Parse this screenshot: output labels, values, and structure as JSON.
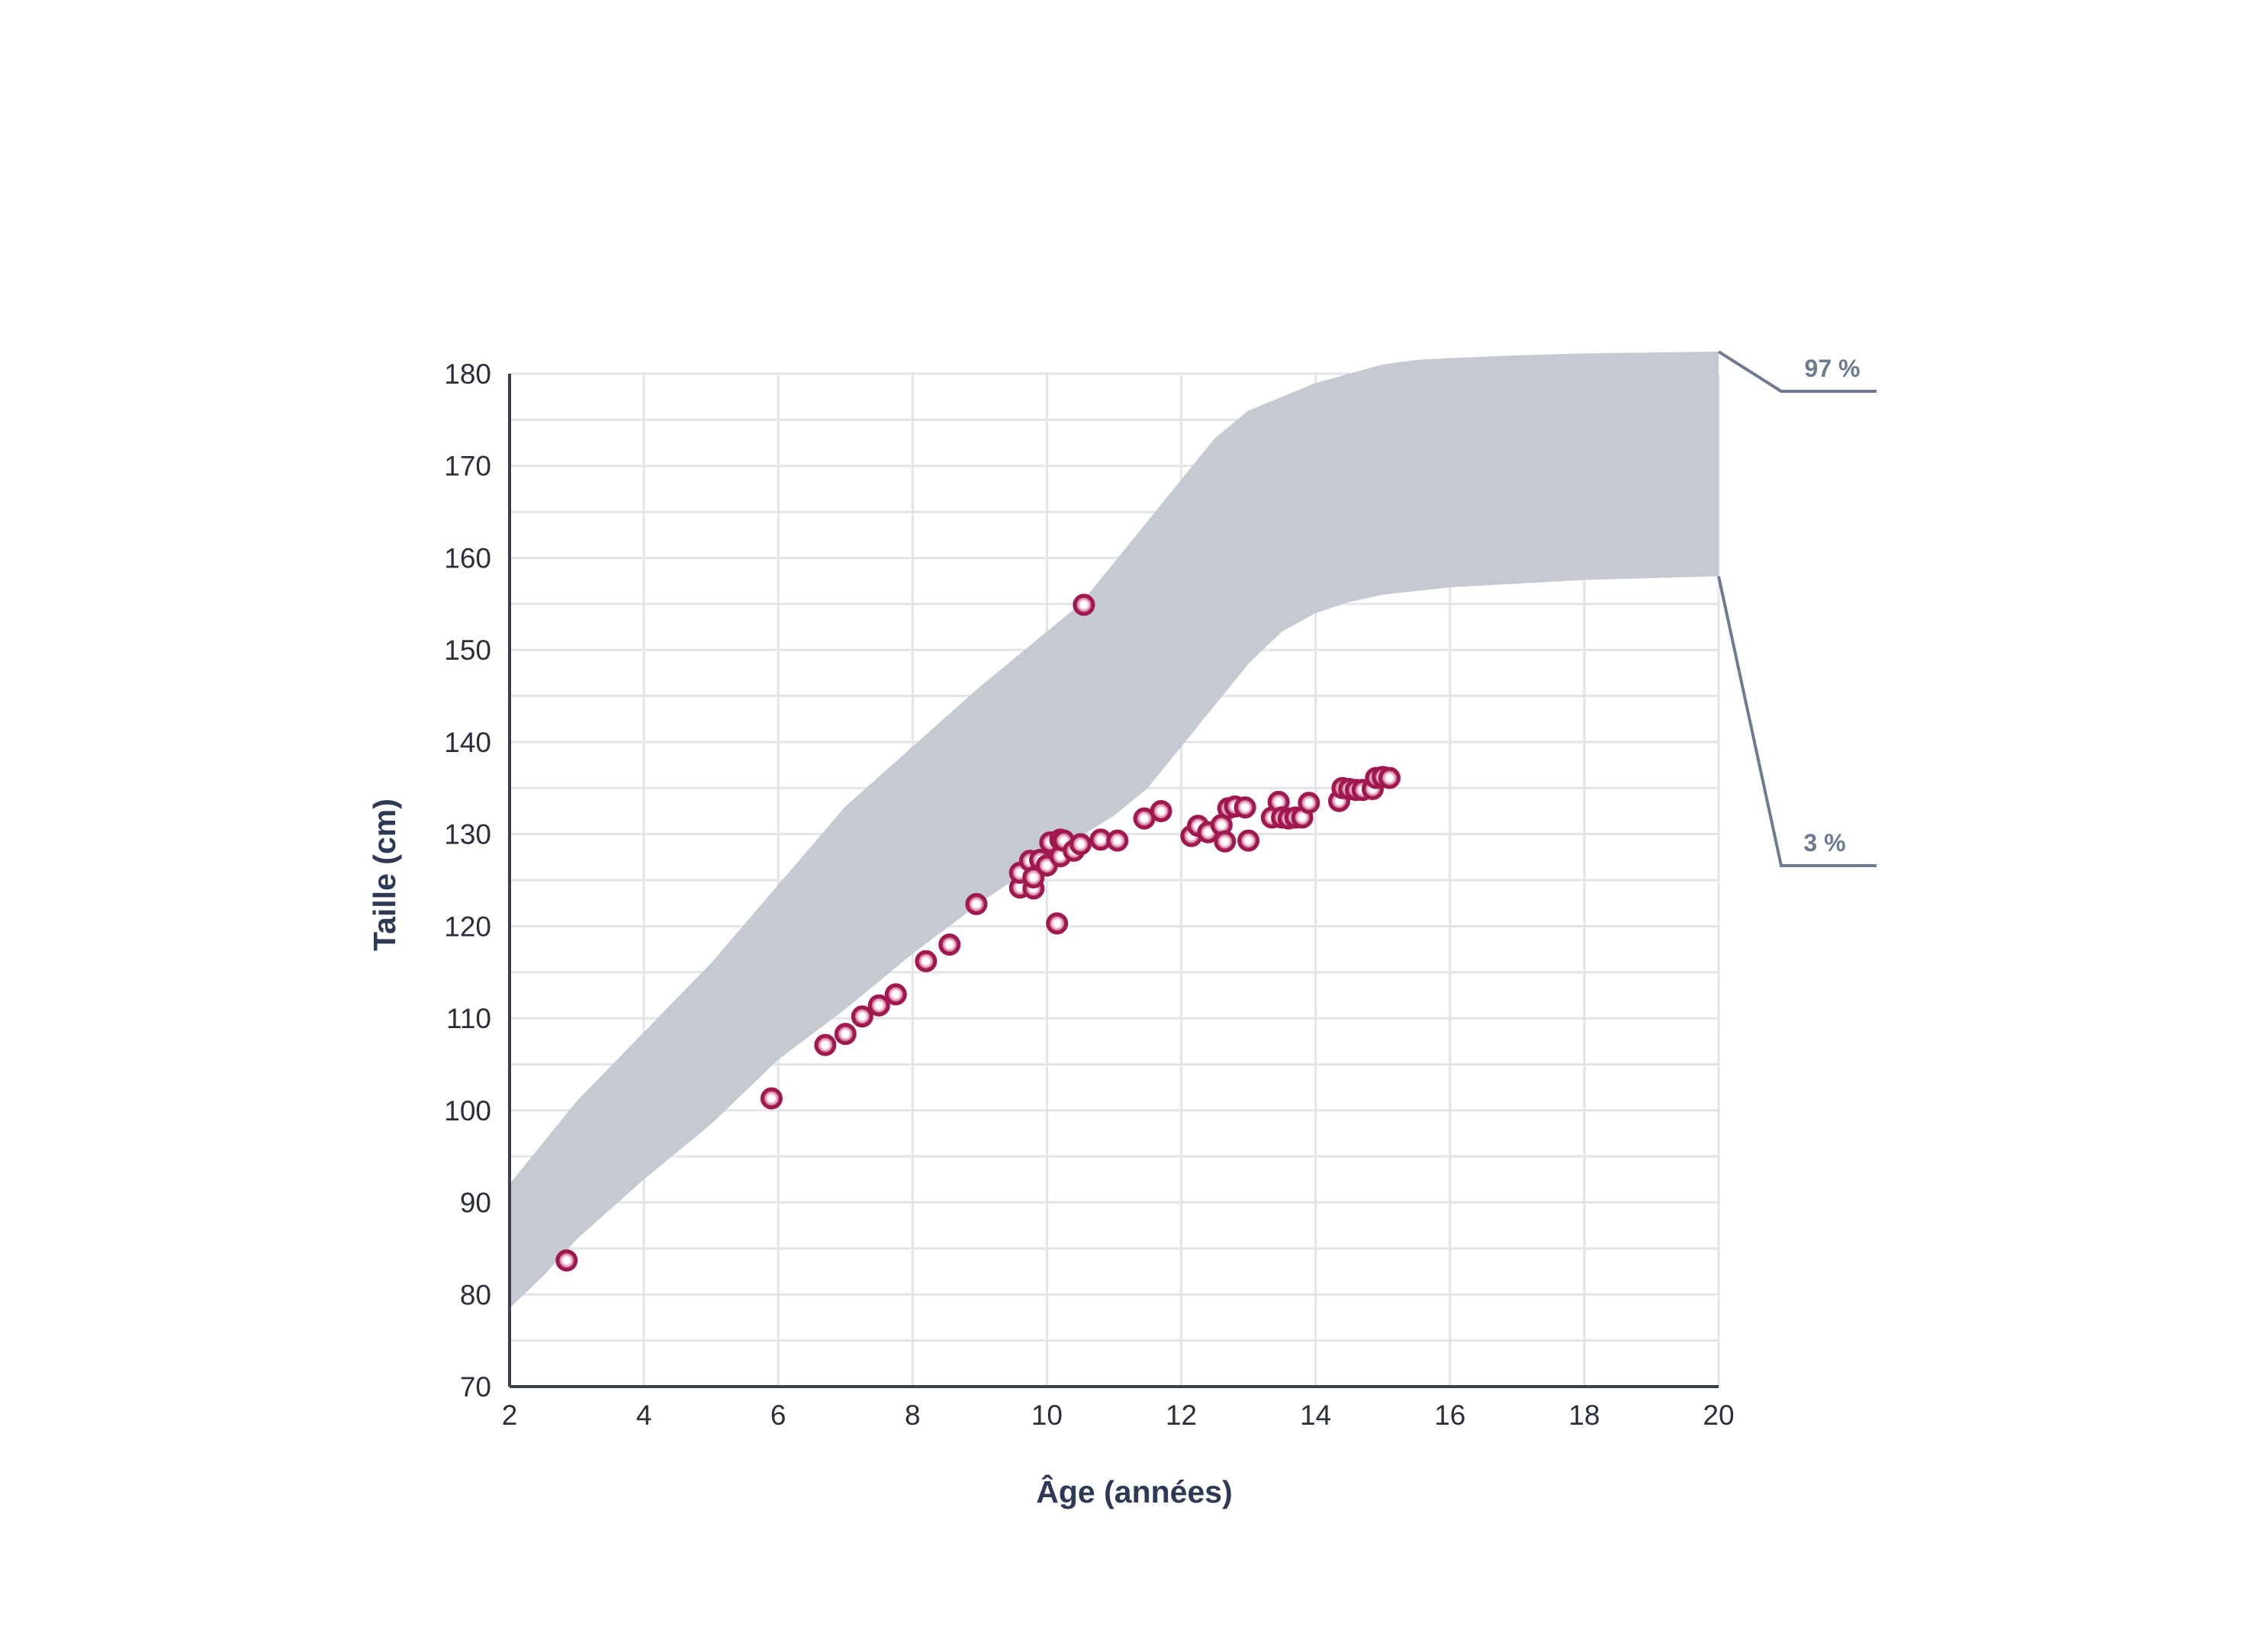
{
  "chart_data": {
    "type": "scatter",
    "title": "",
    "xlabel": "Âge (années)",
    "ylabel": "Taille (cm)",
    "xlim": [
      2,
      20
    ],
    "ylim": [
      70,
      180
    ],
    "x_ticks": [
      2,
      4,
      6,
      8,
      10,
      12,
      14,
      16,
      18,
      20
    ],
    "y_ticks": [
      70,
      80,
      90,
      100,
      110,
      120,
      130,
      140,
      150,
      160,
      170,
      180
    ],
    "grid": true,
    "reference_band": {
      "labels": {
        "upper": "97 %",
        "lower": "3 %"
      },
      "upper": [
        [
          2,
          92
        ],
        [
          3,
          101
        ],
        [
          4,
          108.5
        ],
        [
          5,
          116
        ],
        [
          6,
          124.5
        ],
        [
          7,
          133
        ],
        [
          8,
          139.5
        ],
        [
          9,
          146
        ],
        [
          10,
          152
        ],
        [
          10.5,
          155
        ],
        [
          11,
          159.5
        ],
        [
          11.5,
          164
        ],
        [
          12,
          168.5
        ],
        [
          12.5,
          173
        ],
        [
          13,
          176
        ],
        [
          13.5,
          177.5
        ],
        [
          14,
          179
        ],
        [
          14.5,
          180
        ],
        [
          15,
          181
        ],
        [
          15.5,
          181.5
        ],
        [
          16,
          181.7
        ],
        [
          17,
          182
        ],
        [
          18,
          182.2
        ],
        [
          20,
          182.4
        ]
      ],
      "lower": [
        [
          2,
          78.5
        ],
        [
          2.5,
          82
        ],
        [
          3,
          86
        ],
        [
          4,
          92.5
        ],
        [
          5,
          98.5
        ],
        [
          6,
          105.5
        ],
        [
          7,
          111
        ],
        [
          8,
          117
        ],
        [
          9,
          122.5
        ],
        [
          10,
          127.5
        ],
        [
          11,
          132
        ],
        [
          11.5,
          135
        ],
        [
          12,
          139.5
        ],
        [
          12.5,
          144
        ],
        [
          13,
          148.5
        ],
        [
          13.5,
          152
        ],
        [
          14,
          154
        ],
        [
          14.5,
          155.2
        ],
        [
          15,
          156
        ],
        [
          16,
          156.8
        ],
        [
          17,
          157.2
        ],
        [
          18,
          157.6
        ],
        [
          20,
          158
        ]
      ]
    },
    "series": [
      {
        "color": "#a01850",
        "points": [
          [
            2.85,
            83.7
          ],
          [
            5.9,
            101.3
          ],
          [
            6.7,
            107.1
          ],
          [
            7.0,
            108.3
          ],
          [
            7.25,
            110.2
          ],
          [
            7.5,
            111.4
          ],
          [
            7.75,
            112.6
          ],
          [
            8.2,
            116.2
          ],
          [
            8.55,
            118
          ],
          [
            8.95,
            122.4
          ],
          [
            9.6,
            124.2
          ],
          [
            9.6,
            125.8
          ],
          [
            9.75,
            127.1
          ],
          [
            9.8,
            124.1
          ],
          [
            9.8,
            125.3
          ],
          [
            9.9,
            127.2
          ],
          [
            10.0,
            126.6
          ],
          [
            10.05,
            129.1
          ],
          [
            10.15,
            120.3
          ],
          [
            10.2,
            127.6
          ],
          [
            10.2,
            129.4
          ],
          [
            10.25,
            129.3
          ],
          [
            10.4,
            128.2
          ],
          [
            10.5,
            128.9
          ],
          [
            10.55,
            154.9
          ],
          [
            10.8,
            129.4
          ],
          [
            11.05,
            129.3
          ],
          [
            11.45,
            131.7
          ],
          [
            11.7,
            132.5
          ],
          [
            12.15,
            129.8
          ],
          [
            12.25,
            130.9
          ],
          [
            12.4,
            130.2
          ],
          [
            12.6,
            131
          ],
          [
            12.65,
            129.2
          ],
          [
            12.7,
            132.8
          ],
          [
            12.8,
            133
          ],
          [
            12.95,
            132.9
          ],
          [
            13.0,
            129.3
          ],
          [
            13.35,
            131.8
          ],
          [
            13.45,
            133.5
          ],
          [
            13.5,
            131.8
          ],
          [
            13.6,
            131.7
          ],
          [
            13.7,
            131.8
          ],
          [
            13.8,
            131.8
          ],
          [
            13.9,
            133.4
          ],
          [
            14.35,
            133.6
          ],
          [
            14.4,
            135
          ],
          [
            14.5,
            134.9
          ],
          [
            14.6,
            134.8
          ],
          [
            14.7,
            134.8
          ],
          [
            14.85,
            134.9
          ],
          [
            14.9,
            136.1
          ],
          [
            15.0,
            136.2
          ],
          [
            15.1,
            136.1
          ]
        ]
      }
    ]
  },
  "style": {
    "band_color": "#c5c9d1",
    "grid_color": "#e2e4e8",
    "axis_color": "#3a3f4b",
    "leader_color": "#6e7a92",
    "point_color": "#a01850"
  }
}
